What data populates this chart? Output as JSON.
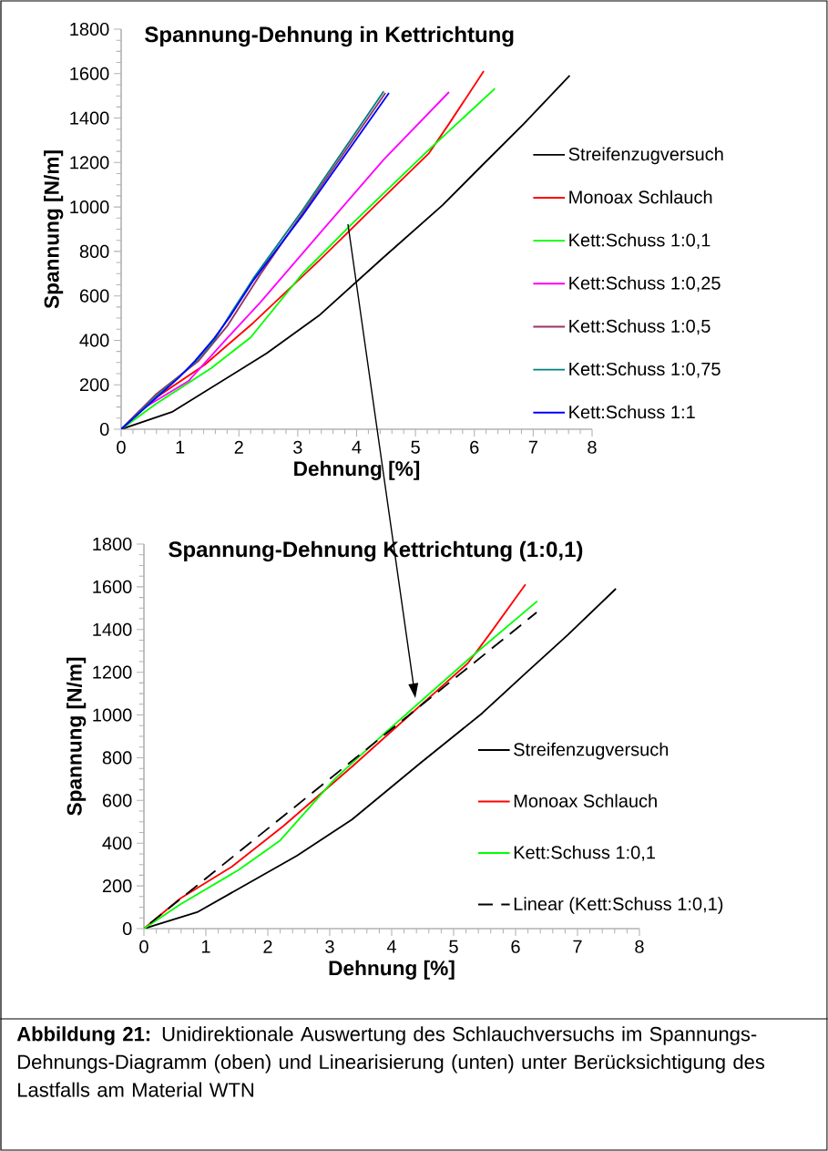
{
  "chart_data": [
    {
      "type": "line",
      "title": "Spannung-Dehnung in Kettrichtung",
      "xlabel": "Dehnung [%]",
      "ylabel": "Spannung [N/m]",
      "xlim": [
        0,
        8
      ],
      "ylim": [
        0,
        1800
      ],
      "xticks": [
        0,
        1,
        2,
        3,
        4,
        5,
        6,
        7,
        8
      ],
      "yticks": [
        0,
        200,
        400,
        600,
        800,
        1000,
        1200,
        1400,
        1600,
        1800
      ],
      "legend": "right",
      "series": [
        {
          "name": "Streifenzugversuch",
          "color": "#000000",
          "x": [
            0,
            0.86,
            2.47,
            3.36,
            4.46,
            5.46,
            6.12,
            6.84,
            7.62
          ],
          "values": [
            0,
            77,
            341,
            511,
            774,
            1008,
            1184,
            1374,
            1591
          ]
        },
        {
          "name": "Monoax Schlauch",
          "color": "#ff0000",
          "x": [
            0,
            0.59,
            1.42,
            2.25,
            3.36,
            4.35,
            5.23,
            5.57,
            6.16
          ],
          "values": [
            0,
            142,
            290,
            480,
            758,
            1015,
            1242,
            1374,
            1611
          ]
        },
        {
          "name": "Kett:Schuss 1:0,1",
          "color": "#00ff00",
          "x": [
            0,
            0.59,
            1.53,
            2.2,
            3.08,
            3.91,
            5.23,
            6.35
          ],
          "values": [
            0,
            114,
            275,
            413,
            700,
            921,
            1258,
            1533
          ]
        },
        {
          "name": "Kett:Schuss 1:0,25",
          "color": "#ff00ff",
          "x": [
            0,
            0.32,
            1.14,
            1.8,
            2.36,
            3.36,
            4.46,
            5.57
          ],
          "values": [
            0,
            85,
            216,
            409,
            569,
            877,
            1213,
            1517
          ]
        },
        {
          "name": "Kett:Schuss 1:0,5",
          "color": "#993366",
          "x": [
            0,
            0.6,
            1.31,
            1.81,
            2.36,
            3.36,
            4.49
          ],
          "values": [
            0,
            159,
            306,
            467,
            695,
            1080,
            1513
          ]
        },
        {
          "name": "Kett:Schuss 1:0,75",
          "color": "#008080",
          "x": [
            0,
            0.6,
            0.98,
            1.25,
            1.58,
            1.86,
            2.25,
            3.08,
            4.46
          ],
          "values": [
            0,
            150,
            235,
            300,
            400,
            520,
            680,
            985,
            1520
          ]
        },
        {
          "name": "Kett:Schuss 1:1",
          "color": "#0000ff",
          "x": [
            0,
            0.6,
            0.98,
            1.25,
            1.58,
            1.86,
            2.25,
            3.08,
            4.55
          ],
          "values": [
            0,
            142,
            232,
            306,
            409,
            511,
            671,
            962,
            1513
          ]
        }
      ]
    },
    {
      "type": "line",
      "title": "Spannung-Dehnung Kettrichtung (1:0,1)",
      "xlabel": "Dehnung [%]",
      "ylabel": "Spannung [N/m]",
      "xlim": [
        0,
        8
      ],
      "ylim": [
        0,
        1800
      ],
      "xticks": [
        0,
        1,
        2,
        3,
        4,
        5,
        6,
        7,
        8
      ],
      "yticks": [
        0,
        200,
        400,
        600,
        800,
        1000,
        1200,
        1400,
        1600,
        1800
      ],
      "legend": "bottom right",
      "annotations": [
        "**Abbildung 21:** Unidirektionale Auswertung des Schlauchversuchs im Spannungs-Dehnungs-Diagramm (oben) und Linearisierung (unten) unter Berücksichtigung des Lastfalls am Material WTN"
      ],
      "series": [
        {
          "name": "Streifenzugversuch",
          "color": "#000000",
          "x": [
            0,
            0.86,
            2.47,
            3.36,
            4.46,
            5.46,
            6.12,
            6.84,
            7.62
          ],
          "values": [
            0,
            77,
            341,
            511,
            774,
            1008,
            1184,
            1374,
            1591
          ]
        },
        {
          "name": "Monoax Schlauch",
          "color": "#ff0000",
          "x": [
            0,
            0.59,
            1.42,
            2.25,
            3.36,
            4.35,
            5.23,
            5.57,
            6.16
          ],
          "values": [
            0,
            142,
            290,
            480,
            758,
            1015,
            1242,
            1374,
            1611
          ]
        },
        {
          "name": "Kett:Schuss 1:0,1",
          "color": "#00ff00",
          "x": [
            0,
            0.59,
            1.53,
            2.2,
            3.08,
            3.91,
            5.23,
            6.35
          ],
          "values": [
            0,
            114,
            275,
            413,
            700,
            921,
            1258,
            1533
          ]
        },
        {
          "name": "Linear (Kett:Schuss 1:0,1)",
          "color": "#000000",
          "line_style": "dashed",
          "x": [
            0.1,
            6.34
          ],
          "values": [
            25,
            1480
          ]
        }
      ]
    }
  ]
}
